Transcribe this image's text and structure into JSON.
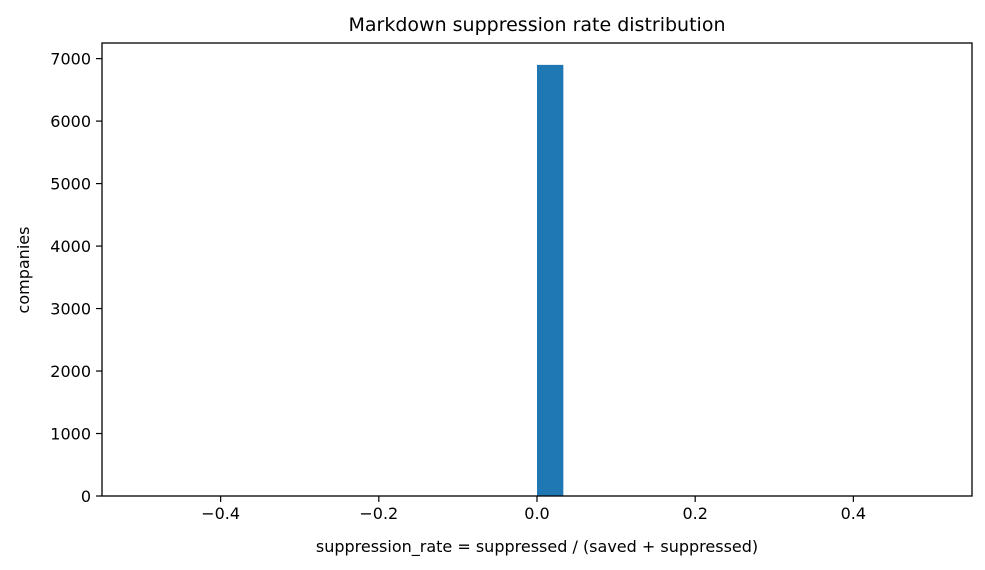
{
  "chart_data": {
    "type": "bar",
    "title": "Markdown suppression rate distribution",
    "xlabel": "suppression_rate = suppressed / (saved + suppressed)",
    "ylabel": "companies",
    "xlim": [
      -0.55,
      0.55
    ],
    "ylim": [
      0,
      7250
    ],
    "xticks": [
      -0.4,
      -0.2,
      0.0,
      0.2,
      0.4
    ],
    "xtick_labels": [
      "−0.4",
      "−0.2",
      "0.0",
      "0.2",
      "0.4"
    ],
    "yticks": [
      0,
      1000,
      2000,
      3000,
      4000,
      5000,
      6000,
      7000
    ],
    "ytick_labels": [
      "0",
      "1000",
      "2000",
      "3000",
      "4000",
      "5000",
      "6000",
      "7000"
    ],
    "bins": [
      {
        "x0": 0.0,
        "x1": 0.0333,
        "count": 6900
      }
    ],
    "bar_color": "#1f77b4",
    "grid": false,
    "legend": "none"
  }
}
